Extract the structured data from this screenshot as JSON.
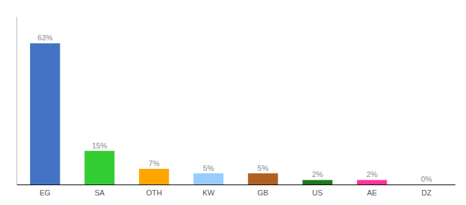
{
  "chart_data": {
    "type": "bar",
    "categories": [
      "EG",
      "SA",
      "OTH",
      "KW",
      "GB",
      "US",
      "AE",
      "DZ"
    ],
    "values": [
      63,
      15,
      7,
      5,
      5,
      2,
      2,
      0
    ],
    "value_labels": [
      "63%",
      "15%",
      "7%",
      "5%",
      "5%",
      "2%",
      "2%",
      "0%"
    ],
    "colors": [
      "#4472c4",
      "#33cc33",
      "#ffa500",
      "#99ccff",
      "#b06020",
      "#1a7a1a",
      "#ff3399",
      "#cccccc"
    ],
    "ylim": [
      0,
      75
    ],
    "grid": false,
    "data_labels": true,
    "tick_labels": "x"
  }
}
